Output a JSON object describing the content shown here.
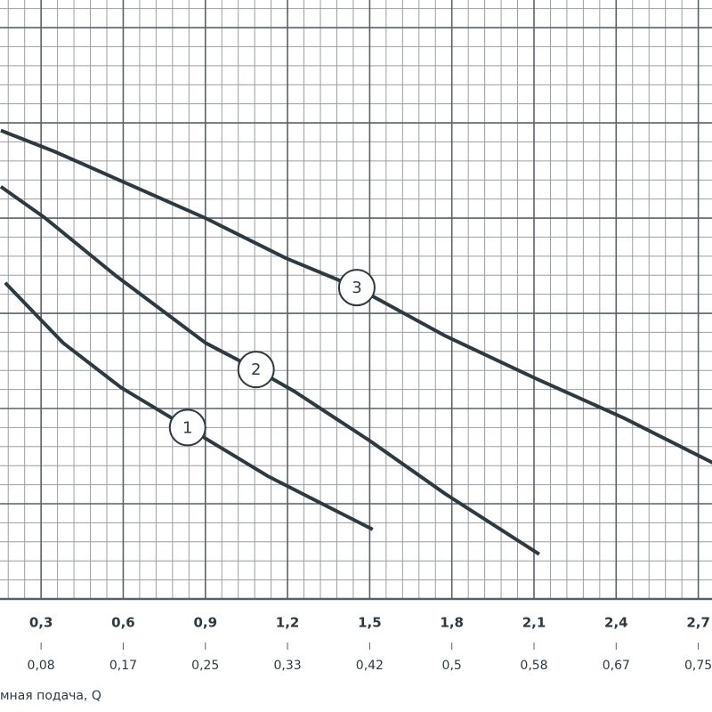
{
  "chart_data": {
    "type": "line",
    "x_label": "мная подача, Q",
    "xlim": [
      0.15,
      2.75
    ],
    "ylim": [
      0,
      6.29
    ],
    "xticks": [
      {
        "value": 0.3,
        "label": "0,3"
      },
      {
        "value": 0.6,
        "label": "0,6"
      },
      {
        "value": 0.9,
        "label": "0,9"
      },
      {
        "value": 1.2,
        "label": "1,2"
      },
      {
        "value": 1.5,
        "label": "1,5"
      },
      {
        "value": 1.8,
        "label": "1,8"
      },
      {
        "value": 2.1,
        "label": "2,1"
      },
      {
        "value": 2.4,
        "label": "2,4"
      },
      {
        "value": 2.7,
        "label": "2,7"
      }
    ],
    "x2lim": [
      0.04167,
      0.76389
    ],
    "x2ticks": [
      {
        "value": 0.08333,
        "label": "0,08"
      },
      {
        "value": 0.16667,
        "label": "0,17"
      },
      {
        "value": 0.25,
        "label": "0,25"
      },
      {
        "value": 0.33333,
        "label": "0,33"
      },
      {
        "value": 0.41667,
        "label": "0,42"
      },
      {
        "value": 0.5,
        "label": "0,5"
      },
      {
        "value": 0.58333,
        "label": "0,58"
      },
      {
        "value": 0.66667,
        "label": "0,67"
      },
      {
        "value": 0.75,
        "label": "0,75"
      }
    ],
    "xminor": [
      0.18,
      0.24,
      0.36,
      0.42,
      0.48,
      0.54,
      0.66,
      0.72,
      0.78,
      0.84,
      0.96,
      1.02,
      1.08,
      1.14,
      1.26,
      1.32,
      1.38,
      1.44,
      1.56,
      1.62,
      1.68,
      1.74,
      1.86,
      1.92,
      1.98,
      2.04,
      2.16,
      2.22,
      2.28,
      2.34,
      2.46,
      2.52,
      2.58,
      2.64
    ],
    "yticks": [
      0,
      1,
      2,
      3,
      4,
      5,
      6
    ],
    "yminor": [
      0.2,
      0.4,
      0.6,
      0.8,
      1.2,
      1.4,
      1.6,
      1.8,
      2.2,
      2.4,
      2.6,
      2.8,
      3.2,
      3.4,
      3.6,
      3.8,
      4.2,
      4.4,
      4.6,
      4.8,
      5.2,
      5.4,
      5.6,
      5.8,
      6.2
    ],
    "grid": true,
    "series": [
      {
        "name": "1",
        "color": "#2e3a42",
        "x": [
          0.169,
          0.38,
          0.592,
          0.835,
          1.128,
          1.511
        ],
        "values": [
          3.32,
          2.69,
          2.22,
          1.8,
          1.29,
          0.73
        ]
      },
      {
        "name": "2",
        "color": "#2e3a42",
        "x": [
          0.153,
          0.315,
          0.575,
          0.9,
          1.085,
          1.225,
          1.501,
          1.778,
          2.119
        ],
        "values": [
          4.33,
          4.0,
          3.39,
          2.69,
          2.41,
          2.18,
          1.66,
          1.1,
          0.47
        ]
      },
      {
        "name": "3",
        "color": "#2e3a42",
        "x": [
          0.153,
          0.348,
          0.608,
          0.9,
          1.193,
          1.453,
          1.778,
          2.103,
          2.428,
          2.753
        ],
        "values": [
          4.92,
          4.7,
          4.37,
          4.0,
          3.58,
          3.27,
          2.76,
          2.32,
          1.9,
          1.43
        ]
      }
    ]
  }
}
